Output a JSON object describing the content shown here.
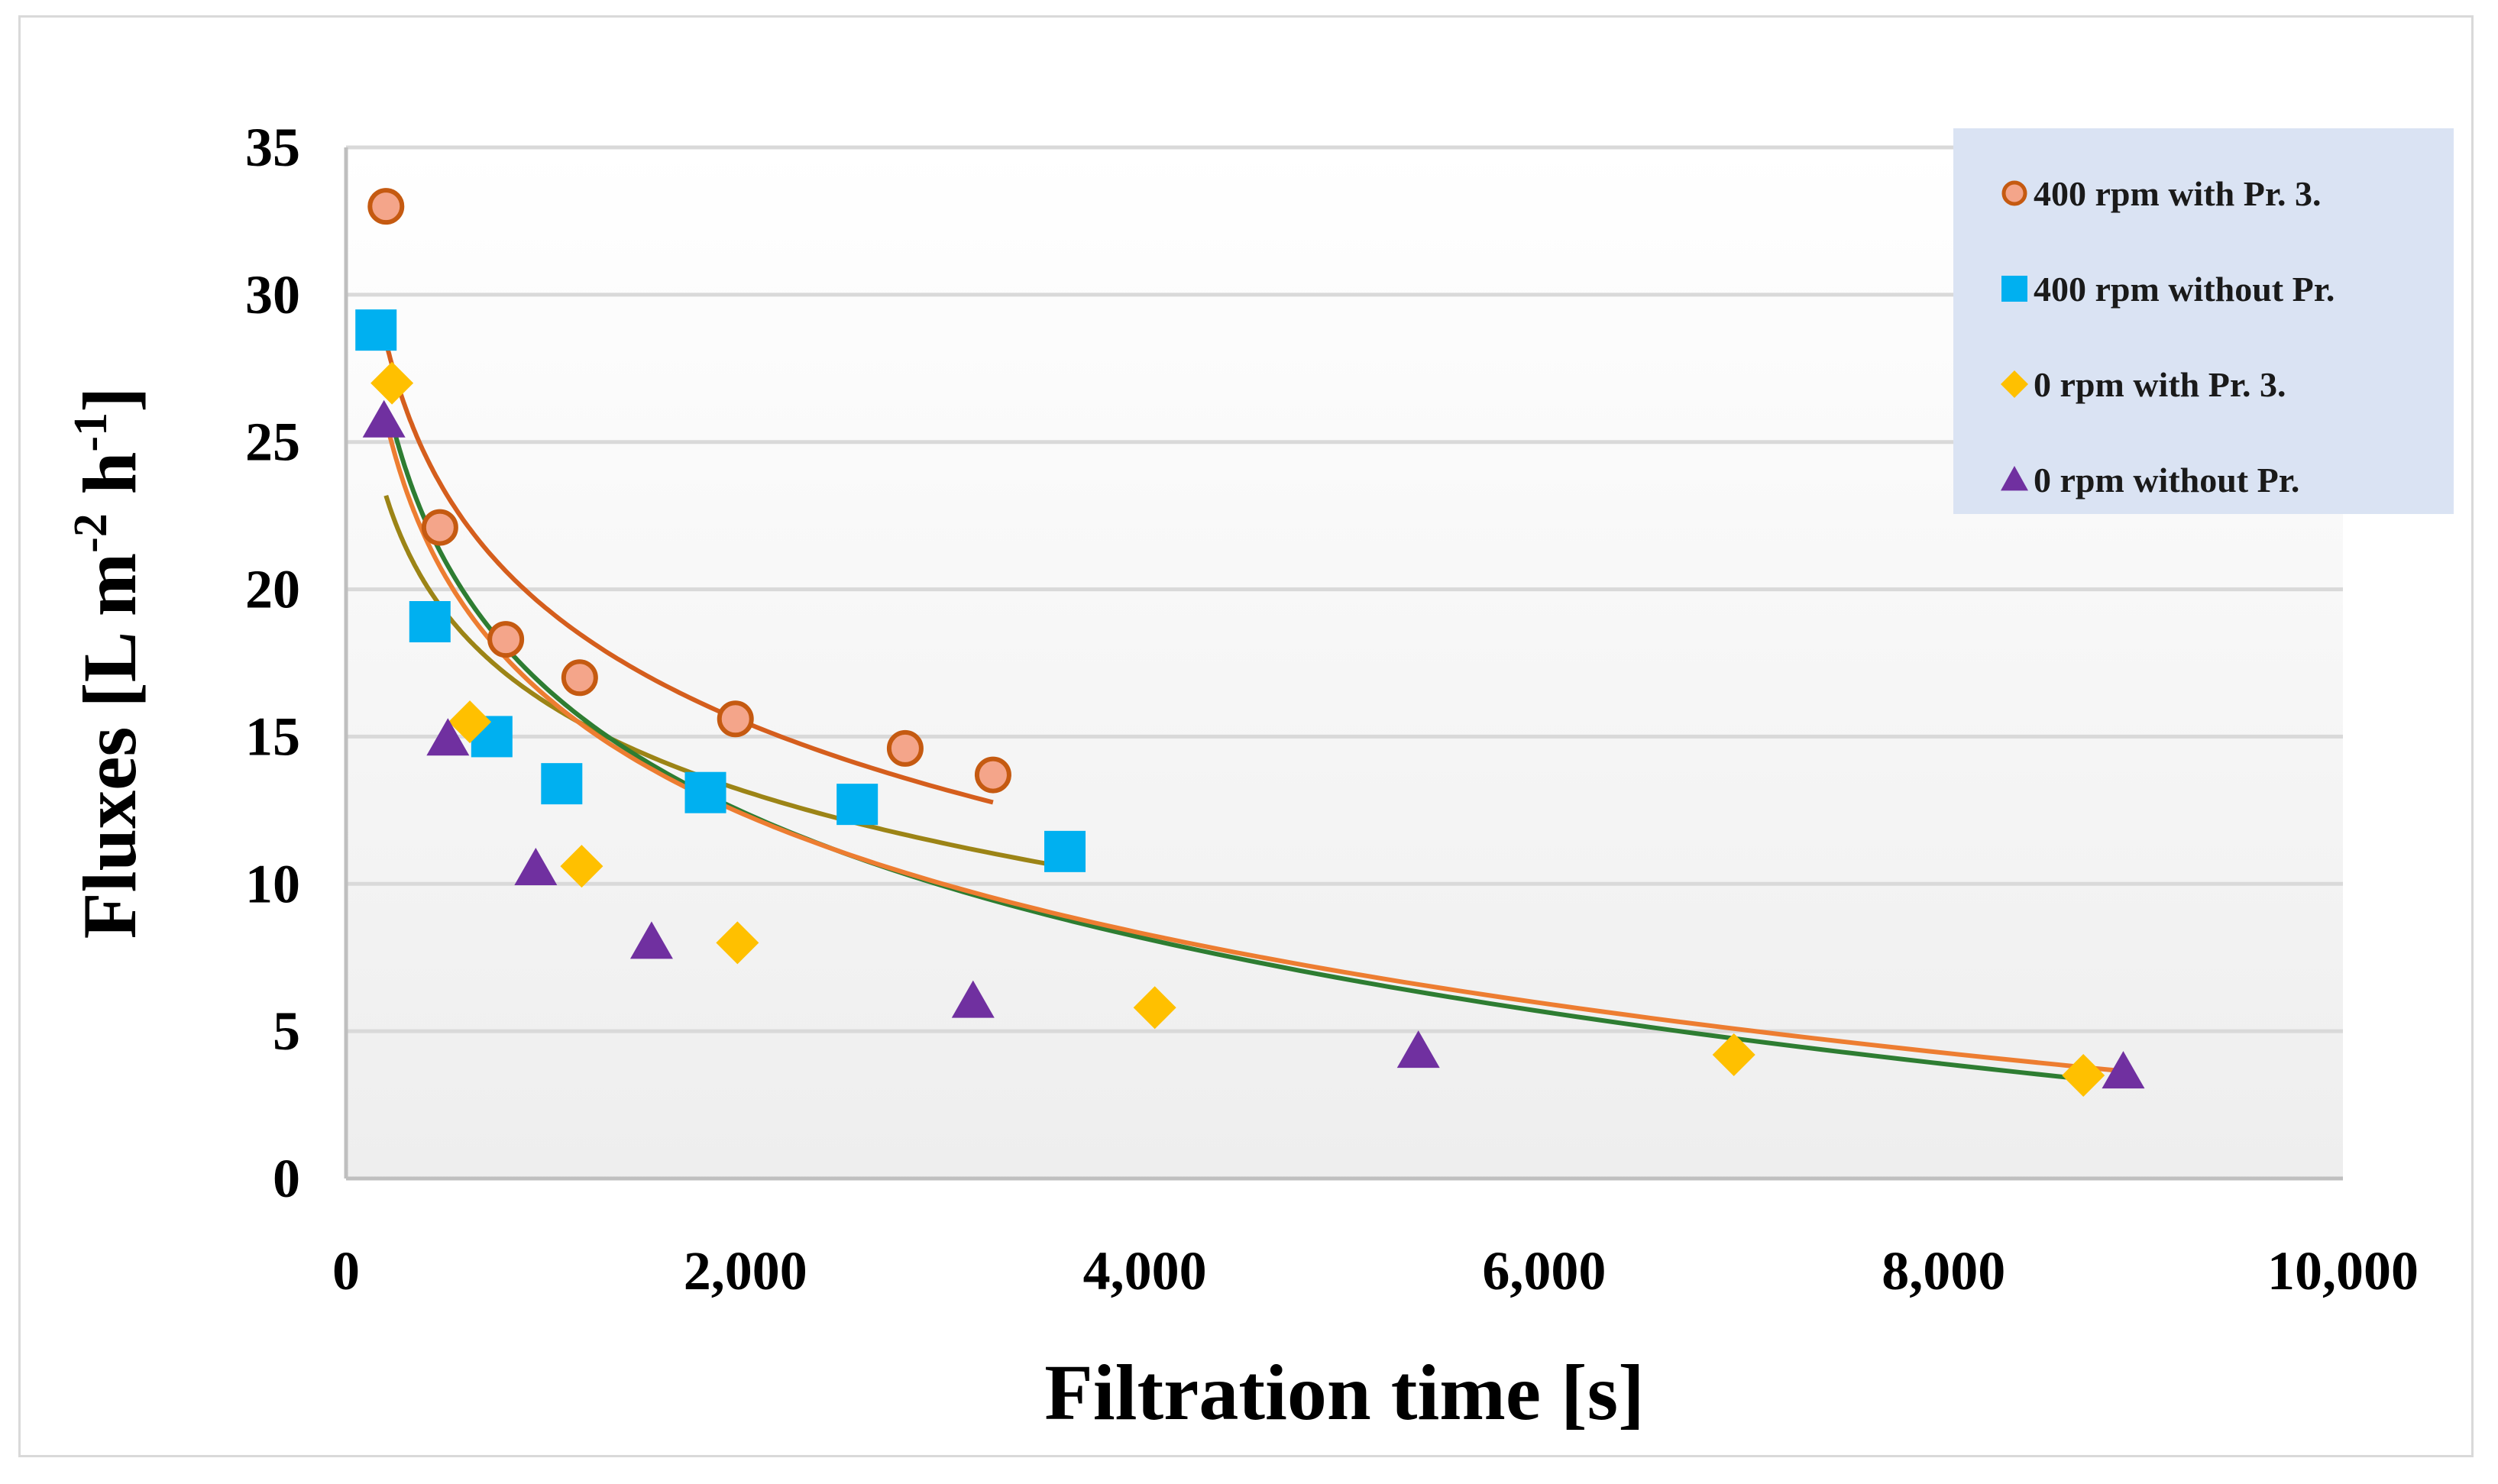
{
  "chart_data": {
    "type": "scatter",
    "title": "",
    "xlabel": "Filtration time [s]",
    "ylabel": "Fluxes [L m-2 h-1]",
    "ylabel_parts": {
      "main": "Fluxes [L m",
      "sup1": "-2",
      "mid": " h",
      "sup2": "-1",
      "end": "]"
    },
    "xlim": [
      0,
      10000
    ],
    "ylim": [
      0,
      35
    ],
    "x_ticks": [
      0,
      2000,
      4000,
      6000,
      8000,
      10000
    ],
    "x_tick_labels": [
      "0",
      "2,000",
      "4,000",
      "6,000",
      "8,000",
      "10,000"
    ],
    "y_ticks": [
      0,
      5,
      10,
      15,
      20,
      25,
      30,
      35
    ],
    "y_tick_labels": [
      "0",
      "5",
      "10",
      "15",
      "20",
      "25",
      "30",
      "35"
    ],
    "grid": true,
    "legend_position": "top-right",
    "series": [
      {
        "name": "400 rpm with Pr. 3.",
        "marker": "circle",
        "color": "#f4a58a",
        "edge_color": "#c55a11",
        "x": [
          200,
          470,
          800,
          1170,
          1950,
          2800,
          3240
        ],
        "y": [
          33.0,
          22.1,
          18.3,
          17.0,
          15.6,
          14.6,
          13.7
        ],
        "trend": {
          "color": "#d55e1d",
          "x_range": [
            170,
            3240
          ],
          "a": 58.14,
          "b": -5.613
        }
      },
      {
        "name": "400 rpm without Pr.",
        "marker": "square",
        "color": "#00b0f0",
        "edge_color": "#00b0f0",
        "x": [
          150,
          420,
          730,
          1080,
          1800,
          2560,
          3600
        ],
        "y": [
          28.8,
          18.9,
          15.0,
          13.4,
          13.1,
          12.7,
          11.1
        ],
        "trend": {
          "color": "#9c8416",
          "x_range": [
            200,
            3600
          ],
          "a": 46.3,
          "b": -4.363
        }
      },
      {
        "name": "0 rpm with Pr. 3.",
        "marker": "diamond",
        "color": "#ffc000",
        "edge_color": "#ffc000",
        "x": [
          230,
          620,
          1180,
          1960,
          4050,
          6950,
          8700
        ],
        "y": [
          27.0,
          15.5,
          10.6,
          8.0,
          5.8,
          4.2,
          3.5
        ],
        "trend": {
          "color": "#2e7d32",
          "x_range": [
            230,
            8700
          ],
          "a": 59.08,
          "b": -6.141
        }
      },
      {
        "name": "0 rpm without Pr.",
        "marker": "triangle",
        "color": "#7030a0",
        "edge_color": "#7030a0",
        "x": [
          190,
          510,
          950,
          1530,
          3140,
          5370,
          8900
        ],
        "y": [
          25.7,
          14.9,
          10.5,
          8.0,
          6.0,
          4.3,
          3.6
        ],
        "trend": {
          "color": "#ed7d31",
          "x_range": [
            190,
            8900
          ],
          "a": 56.59,
          "b": -5.822
        }
      }
    ]
  }
}
